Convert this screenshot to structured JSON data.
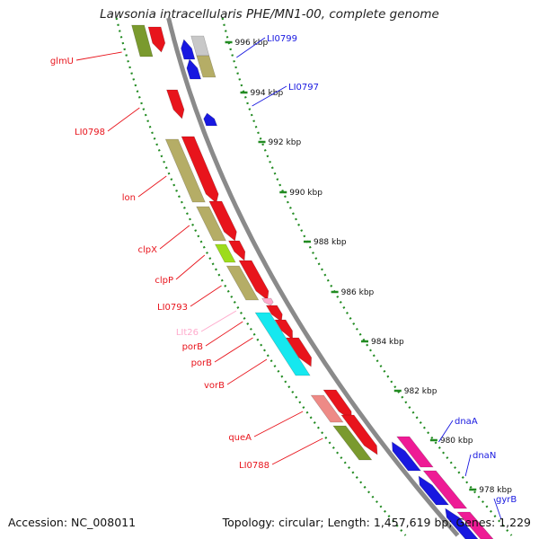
{
  "title": "Lawsonia intracellularis PHE/MN1-00, complete genome",
  "footer": {
    "accession": "Accession: NC_008011",
    "topology": "Topology: circular; Length: 1,457,619 bp; Genes: 1,229"
  },
  "colors": {
    "backbone": "#8a8a8a",
    "grid": "#228b22",
    "red": "#e8141c",
    "olive": "#b5ad66",
    "green": "#7a9a2e",
    "lime": "#9ddc1c",
    "cyan": "#15e8ef",
    "blue": "#1818e0",
    "magenta": "#ee1b95",
    "salmon": "#ee8a86",
    "grey": "#c8c8c8",
    "pink": "#ffaacc"
  },
  "ticks": [
    "996 kbp",
    "994 kbp",
    "992 kbp",
    "990 kbp",
    "988 kbp",
    "986 kbp",
    "984 kbp",
    "982 kbp",
    "980 kbp",
    "978 kbp"
  ],
  "labels": {
    "reverse": [
      "glmU",
      "LI0798",
      "lon",
      "clpX",
      "clpP",
      "LI0793",
      "LIt26",
      "porB",
      "porB",
      "vorB",
      "queA",
      "LI0788"
    ],
    "forward": [
      "LI0799",
      "LI0797",
      "dnaA",
      "dnaN",
      "gyrB"
    ]
  }
}
